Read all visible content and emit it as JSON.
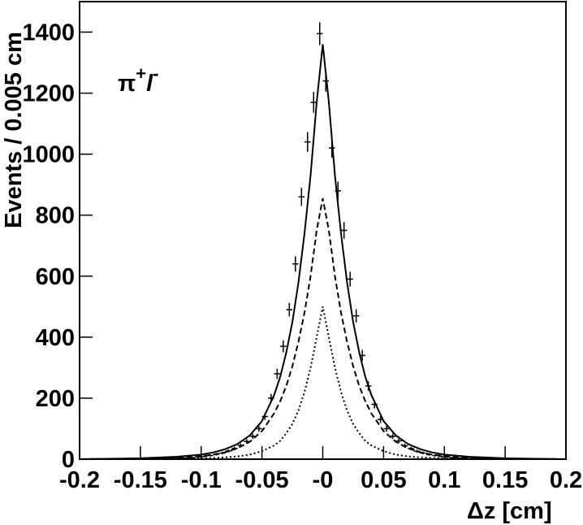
{
  "chart_data": {
    "type": "histogram",
    "xlabel": "Δz [cm]",
    "ylabel": "Events / 0.005 cm",
    "annotation": [
      "π",
      "+",
      "l",
      "-"
    ],
    "xlim": [
      -0.2,
      0.2
    ],
    "ylim": [
      0,
      1500
    ],
    "xticks": [
      -0.2,
      -0.15,
      -0.1,
      -0.05,
      {
        "value": 0,
        "label": "-0"
      },
      0.05,
      0.1,
      0.15,
      0.2
    ],
    "yticks": [
      0,
      200,
      400,
      600,
      800,
      1000,
      1200,
      1400
    ],
    "bins": [
      -0.2,
      -0.195,
      -0.19,
      -0.185,
      -0.18,
      -0.175,
      -0.17,
      -0.165,
      -0.16,
      -0.155,
      -0.15,
      -0.145,
      -0.14,
      -0.135,
      -0.13,
      -0.125,
      -0.12,
      -0.115,
      -0.11,
      -0.105,
      -0.1,
      -0.095,
      -0.09,
      -0.085,
      -0.08,
      -0.075,
      -0.07,
      -0.065,
      -0.06,
      -0.055,
      -0.05,
      -0.045,
      -0.04,
      -0.035,
      -0.03,
      -0.025,
      -0.02,
      -0.015,
      -0.01,
      -0.005,
      0,
      0.005,
      0.01,
      0.015,
      0.02,
      0.025,
      0.03,
      0.035,
      0.04,
      0.045,
      0.05,
      0.055,
      0.06,
      0.065,
      0.07,
      0.075,
      0.08,
      0.085,
      0.09,
      0.095,
      0.1,
      0.105,
      0.11,
      0.115,
      0.12,
      0.125,
      0.13,
      0.135,
      0.14,
      0.145,
      0.15,
      0.155,
      0.16,
      0.165,
      0.17,
      0.175,
      0.18,
      0.185,
      0.19,
      0.195,
      0.2
    ],
    "values": [
      0,
      0,
      0,
      0,
      1,
      0,
      0,
      0,
      0,
      1,
      1,
      1,
      1,
      2,
      2,
      3,
      3,
      4,
      5,
      7,
      9,
      12,
      16,
      20,
      27,
      35,
      45,
      58,
      75,
      100,
      140,
      200,
      280,
      370,
      490,
      640,
      860,
      1040,
      1170,
      1395,
      1240,
      1020,
      880,
      750,
      590,
      470,
      340,
      240,
      180,
      130,
      100,
      75,
      60,
      44,
      35,
      26,
      20,
      15,
      12,
      9,
      7,
      5,
      4,
      3,
      2,
      2,
      2,
      1,
      1,
      1,
      0,
      1,
      0,
      0,
      0,
      0,
      0,
      0,
      0,
      0
    ],
    "errors": [
      0,
      0,
      0,
      0,
      1,
      0,
      0,
      0,
      0,
      1,
      1,
      1,
      1,
      1.4,
      1.4,
      1.7,
      1.7,
      2,
      2.2,
      2.6,
      3,
      3.5,
      4,
      4.5,
      5.2,
      5.9,
      6.7,
      7.6,
      8.7,
      10,
      11.8,
      14.1,
      16.7,
      19.2,
      22.1,
      25.3,
      29.3,
      32.2,
      34.2,
      37.4,
      35.2,
      31.9,
      29.7,
      27.4,
      24.3,
      21.7,
      18.4,
      15.5,
      13.4,
      11.4,
      10,
      8.7,
      7.7,
      6.6,
      5.9,
      5.1,
      4.5,
      3.9,
      3.5,
      3,
      2.6,
      2.2,
      2,
      1.7,
      1.4,
      1.4,
      1.4,
      1,
      1,
      1,
      0,
      1,
      0,
      0,
      0,
      0,
      0,
      0,
      0,
      0
    ],
    "curve_x": [
      -0.2,
      -0.15,
      -0.12,
      -0.1,
      -0.09,
      -0.08,
      -0.07,
      -0.06,
      -0.05,
      -0.04,
      -0.035,
      -0.03,
      -0.025,
      -0.02,
      -0.015,
      -0.01,
      -0.005,
      0,
      0.005,
      0.01,
      0.015,
      0.02,
      0.025,
      0.03,
      0.035,
      0.04,
      0.05,
      0.06,
      0.07,
      0.08,
      0.09,
      0.1,
      0.12,
      0.15,
      0.2
    ],
    "curves": [
      {
        "style": "solid",
        "values": [
          0,
          3,
          8,
          15,
          22,
          33,
          50,
          78,
          125,
          210,
          270,
          350,
          450,
          580,
          740,
          930,
          1170,
          1360,
          1170,
          930,
          740,
          580,
          450,
          350,
          270,
          210,
          125,
          78,
          50,
          33,
          22,
          15,
          8,
          3,
          0
        ]
      },
      {
        "style": "dashed",
        "values": [
          0,
          2,
          5,
          10,
          15,
          23,
          36,
          57,
          92,
          150,
          190,
          240,
          305,
          385,
          480,
          600,
          750,
          855,
          750,
          600,
          480,
          385,
          305,
          240,
          190,
          150,
          92,
          57,
          36,
          23,
          15,
          10,
          5,
          2,
          0
        ]
      },
      {
        "style": "dotted",
        "values": [
          0,
          0,
          1,
          2,
          4,
          6,
          9,
          15,
          26,
          45,
          60,
          85,
          115,
          160,
          220,
          300,
          400,
          500,
          400,
          300,
          220,
          160,
          115,
          85,
          60,
          45,
          26,
          15,
          9,
          6,
          4,
          2,
          1,
          0,
          0
        ]
      }
    ]
  }
}
